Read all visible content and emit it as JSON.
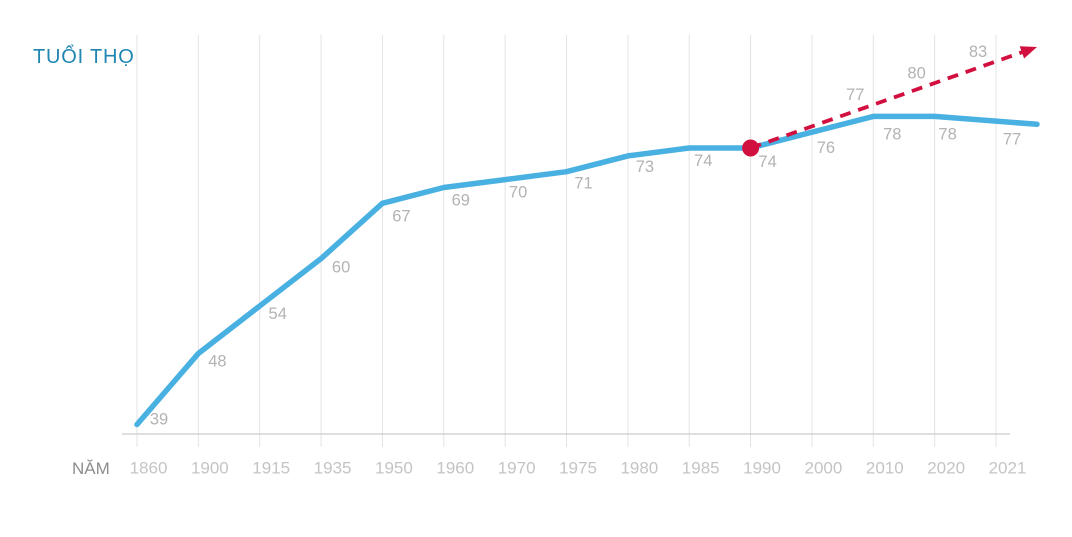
{
  "chart_data": {
    "type": "line",
    "title": "TUỔI THỌ",
    "xlabel": "NĂM",
    "categories": [
      "1860",
      "1900",
      "1915",
      "1935",
      "1950",
      "1960",
      "1970",
      "1975",
      "1980",
      "1985",
      "1990",
      "2000",
      "2010",
      "2020",
      "2021"
    ],
    "series": [
      {
        "name": "observed-life-expectancy",
        "color": "#48b1e2",
        "values": [
          39,
          48,
          54,
          60,
          67,
          69,
          70,
          71,
          73,
          74,
          74,
          76,
          78,
          78,
          77
        ]
      },
      {
        "name": "projection",
        "color": "#d2103f",
        "style": "dashed-arrow",
        "start": {
          "category": "1990",
          "value": 74
        },
        "points": [
          {
            "category": "2010",
            "value": 77
          },
          {
            "category": "2020",
            "value": 80
          },
          {
            "category": "2021",
            "value": 83
          }
        ]
      }
    ],
    "highlight_point": {
      "category": "1990",
      "value": 74
    },
    "grid": "vertical",
    "legend": "none",
    "ylim": [
      37,
      85
    ]
  },
  "colors": {
    "title": "#1f86b3",
    "line": "#48b1e2",
    "projection": "#d2103f",
    "grid": "#e3e3e3",
    "baseline": "#cccccc",
    "value_label": "#b3b3b3",
    "tick_label": "#c4c4c4",
    "axis_name": "#8d8d8d",
    "background": "#ffffff"
  }
}
